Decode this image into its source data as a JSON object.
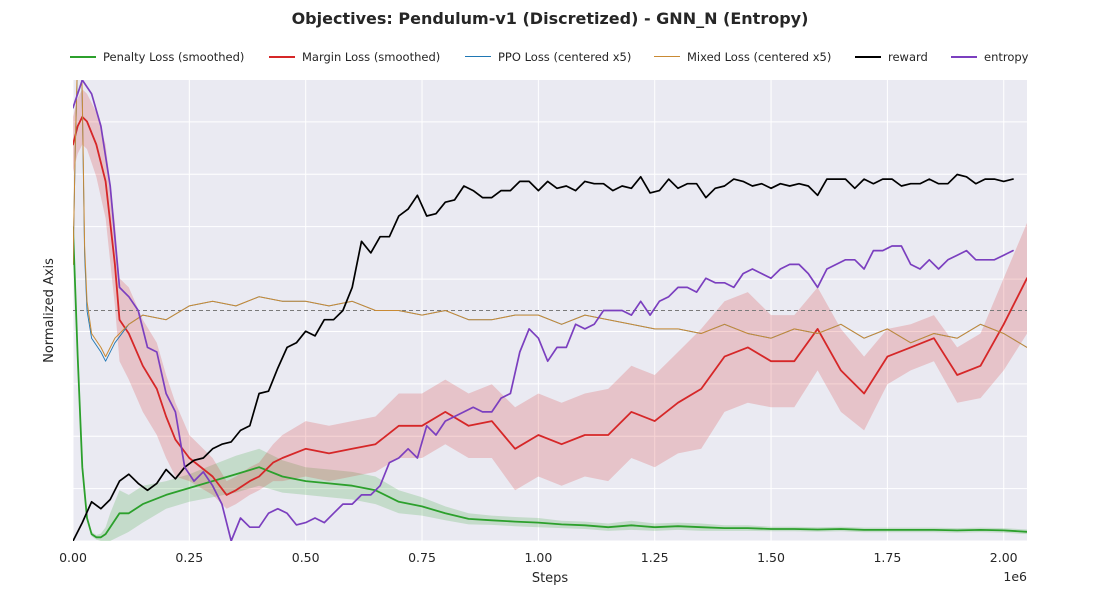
{
  "chart_data": {
    "type": "line",
    "title": "Objectives: Pendulum-v1 (Discretized) - GNN_N (Entropy)",
    "xlabel": "Steps",
    "ylabel": "Normalized Axis",
    "x_scale_label": "1e6",
    "xlim": [
      0.0,
      2.05
    ],
    "ylim": [
      0,
      1
    ],
    "x_ticks": [
      0.0,
      0.25,
      0.5,
      0.75,
      1.0,
      1.25,
      1.5,
      1.75,
      2.0
    ],
    "x_tick_labels": [
      "0.00",
      "0.25",
      "0.50",
      "0.75",
      "1.00",
      "1.25",
      "1.50",
      "1.75",
      "2.00"
    ],
    "grid": true,
    "legend_position": "top",
    "reference_line": {
      "y": 0.5,
      "style": "dashed",
      "color": "#7a7a7a"
    },
    "series": [
      {
        "name": "Penalty Loss (smoothed)",
        "color": "#2ca02c",
        "band_color": "#2ca02c",
        "x": [
          0.0,
          0.01,
          0.02,
          0.03,
          0.04,
          0.05,
          0.06,
          0.07,
          0.08,
          0.1,
          0.12,
          0.15,
          0.2,
          0.25,
          0.3,
          0.35,
          0.4,
          0.45,
          0.5,
          0.55,
          0.6,
          0.65,
          0.7,
          0.75,
          0.8,
          0.85,
          0.9,
          0.95,
          1.0,
          1.05,
          1.1,
          1.15,
          1.2,
          1.25,
          1.3,
          1.35,
          1.4,
          1.45,
          1.5,
          1.55,
          1.6,
          1.65,
          1.7,
          1.75,
          1.8,
          1.85,
          1.9,
          1.95,
          2.0,
          2.05
        ],
        "y": [
          0.68,
          0.4,
          0.16,
          0.05,
          0.015,
          0.008,
          0.008,
          0.015,
          0.03,
          0.06,
          0.06,
          0.08,
          0.1,
          0.115,
          0.13,
          0.145,
          0.16,
          0.14,
          0.13,
          0.125,
          0.12,
          0.11,
          0.085,
          0.075,
          0.06,
          0.048,
          0.045,
          0.042,
          0.04,
          0.036,
          0.034,
          0.03,
          0.034,
          0.03,
          0.032,
          0.03,
          0.028,
          0.028,
          0.026,
          0.026,
          0.025,
          0.026,
          0.024,
          0.024,
          0.024,
          0.024,
          0.023,
          0.024,
          0.023,
          0.02
        ],
        "band": [
          0,
          0,
          0,
          0.005,
          0.005,
          0.005,
          0.008,
          0.015,
          0.03,
          0.05,
          0.04,
          0.04,
          0.03,
          0.03,
          0.035,
          0.04,
          0.04,
          0.035,
          0.03,
          0.03,
          0.03,
          0.03,
          0.025,
          0.02,
          0.015,
          0.012,
          0.01,
          0.01,
          0.01,
          0.008,
          0.008,
          0.008,
          0.01,
          0.008,
          0.008,
          0.008,
          0.006,
          0.006,
          0.005,
          0.005,
          0.005,
          0.005,
          0.005,
          0.005,
          0.005,
          0.005,
          0.005,
          0.005,
          0.005,
          0.005
        ]
      },
      {
        "name": "Margin Loss (smoothed)",
        "color": "#d62728",
        "band_color": "#d62728",
        "x": [
          0.0,
          0.01,
          0.02,
          0.03,
          0.05,
          0.07,
          0.09,
          0.1,
          0.12,
          0.15,
          0.18,
          0.2,
          0.22,
          0.25,
          0.3,
          0.33,
          0.35,
          0.38,
          0.4,
          0.43,
          0.45,
          0.5,
          0.55,
          0.6,
          0.65,
          0.7,
          0.75,
          0.8,
          0.85,
          0.9,
          0.95,
          1.0,
          1.05,
          1.1,
          1.15,
          1.2,
          1.25,
          1.3,
          1.35,
          1.4,
          1.45,
          1.5,
          1.55,
          1.6,
          1.65,
          1.7,
          1.75,
          1.8,
          1.85,
          1.9,
          1.95,
          2.0,
          2.05
        ],
        "y": [
          0.86,
          0.9,
          0.92,
          0.91,
          0.86,
          0.78,
          0.6,
          0.48,
          0.45,
          0.38,
          0.33,
          0.27,
          0.22,
          0.18,
          0.14,
          0.1,
          0.11,
          0.13,
          0.14,
          0.17,
          0.18,
          0.2,
          0.19,
          0.2,
          0.21,
          0.25,
          0.25,
          0.28,
          0.25,
          0.26,
          0.2,
          0.23,
          0.21,
          0.23,
          0.23,
          0.28,
          0.26,
          0.3,
          0.33,
          0.4,
          0.42,
          0.39,
          0.39,
          0.46,
          0.37,
          0.32,
          0.4,
          0.42,
          0.44,
          0.36,
          0.38,
          0.47,
          0.57
        ],
        "band": [
          0.06,
          0.06,
          0.06,
          0.06,
          0.07,
          0.08,
          0.09,
          0.09,
          0.1,
          0.1,
          0.1,
          0.09,
          0.08,
          0.05,
          0.04,
          0.03,
          0.03,
          0.03,
          0.03,
          0.04,
          0.05,
          0.06,
          0.06,
          0.06,
          0.06,
          0.07,
          0.07,
          0.07,
          0.07,
          0.08,
          0.09,
          0.09,
          0.09,
          0.09,
          0.1,
          0.1,
          0.1,
          0.11,
          0.13,
          0.12,
          0.12,
          0.1,
          0.1,
          0.09,
          0.09,
          0.08,
          0.06,
          0.05,
          0.05,
          0.06,
          0.07,
          0.1,
          0.12
        ]
      },
      {
        "name": "PPO Loss (centered x5)",
        "color": "#1f77b4",
        "x": [
          0.0,
          0.005,
          0.01,
          0.015,
          0.02,
          0.025,
          0.03,
          0.04,
          0.06,
          0.07,
          0.09,
          0.12,
          0.15,
          0.2,
          0.25,
          0.3,
          0.35,
          0.4,
          0.45,
          0.5,
          0.55,
          0.6,
          0.65,
          0.7,
          0.75,
          0.8,
          0.85,
          0.9,
          0.95,
          1.0,
          1.05,
          1.1,
          1.15,
          1.2,
          1.25,
          1.3,
          1.35,
          1.4,
          1.45,
          1.5,
          1.55,
          1.6,
          1.65,
          1.7,
          1.75,
          1.8,
          1.85,
          1.9,
          1.95,
          2.0,
          2.05
        ],
        "y": [
          0.6,
          0.85,
          1.05,
          1.2,
          0.95,
          0.62,
          0.5,
          0.44,
          0.41,
          0.39,
          0.43,
          0.47,
          0.49,
          0.48,
          0.51,
          0.52,
          0.51,
          0.53,
          0.52,
          0.52,
          0.51,
          0.52,
          0.5,
          0.5,
          0.49,
          0.5,
          0.48,
          0.48,
          0.49,
          0.49,
          0.47,
          0.49,
          0.48,
          0.47,
          0.46,
          0.46,
          0.45,
          0.47,
          0.45,
          0.44,
          0.46,
          0.45,
          0.47,
          0.44,
          0.46,
          0.43,
          0.45,
          0.44,
          0.47,
          0.45,
          0.42
        ]
      },
      {
        "name": "Mixed Loss (centered x5)",
        "color": "#c98a34",
        "x": [
          0.0,
          0.005,
          0.01,
          0.015,
          0.02,
          0.025,
          0.03,
          0.04,
          0.06,
          0.07,
          0.09,
          0.12,
          0.15,
          0.2,
          0.25,
          0.3,
          0.35,
          0.4,
          0.45,
          0.5,
          0.55,
          0.6,
          0.65,
          0.7,
          0.75,
          0.8,
          0.85,
          0.9,
          0.95,
          1.0,
          1.05,
          1.1,
          1.15,
          1.2,
          1.25,
          1.3,
          1.35,
          1.4,
          1.45,
          1.5,
          1.55,
          1.6,
          1.65,
          1.7,
          1.75,
          1.8,
          1.85,
          1.9,
          1.95,
          2.0,
          2.05
        ],
        "y": [
          0.6,
          0.86,
          1.06,
          1.2,
          0.96,
          0.64,
          0.52,
          0.45,
          0.42,
          0.4,
          0.44,
          0.47,
          0.49,
          0.48,
          0.51,
          0.52,
          0.51,
          0.53,
          0.52,
          0.52,
          0.51,
          0.52,
          0.5,
          0.5,
          0.49,
          0.5,
          0.48,
          0.48,
          0.49,
          0.49,
          0.47,
          0.49,
          0.48,
          0.47,
          0.46,
          0.46,
          0.45,
          0.47,
          0.45,
          0.44,
          0.46,
          0.45,
          0.47,
          0.44,
          0.46,
          0.43,
          0.45,
          0.44,
          0.47,
          0.45,
          0.42
        ]
      },
      {
        "name": "reward",
        "color": "#000000",
        "x": [
          0.0,
          0.02,
          0.04,
          0.06,
          0.08,
          0.1,
          0.12,
          0.14,
          0.16,
          0.18,
          0.2,
          0.22,
          0.24,
          0.26,
          0.28,
          0.3,
          0.32,
          0.34,
          0.36,
          0.38,
          0.4,
          0.42,
          0.44,
          0.46,
          0.48,
          0.5,
          0.52,
          0.54,
          0.56,
          0.58,
          0.6,
          0.62,
          0.64,
          0.66,
          0.68,
          0.7,
          0.72,
          0.74,
          0.76,
          0.78,
          0.8,
          0.82,
          0.84,
          0.86,
          0.88,
          0.9,
          0.92,
          0.94,
          0.96,
          0.98,
          1.0,
          1.02,
          1.04,
          1.06,
          1.08,
          1.1,
          1.12,
          1.14,
          1.16,
          1.18,
          1.2,
          1.22,
          1.24,
          1.26,
          1.28,
          1.3,
          1.32,
          1.34,
          1.36,
          1.38,
          1.4,
          1.42,
          1.44,
          1.46,
          1.48,
          1.5,
          1.52,
          1.54,
          1.56,
          1.58,
          1.6,
          1.62,
          1.64,
          1.66,
          1.68,
          1.7,
          1.72,
          1.74,
          1.76,
          1.78,
          1.8,
          1.82,
          1.84,
          1.86,
          1.88,
          1.9,
          1.92,
          1.94,
          1.96,
          1.98,
          2.0,
          2.02
        ],
        "y": [
          0.0,
          0.04,
          0.085,
          0.07,
          0.09,
          0.13,
          0.145,
          0.125,
          0.11,
          0.125,
          0.155,
          0.135,
          0.16,
          0.175,
          0.18,
          0.2,
          0.21,
          0.215,
          0.24,
          0.25,
          0.32,
          0.325,
          0.375,
          0.42,
          0.43,
          0.455,
          0.445,
          0.48,
          0.48,
          0.5,
          0.55,
          0.65,
          0.625,
          0.66,
          0.66,
          0.705,
          0.72,
          0.75,
          0.705,
          0.71,
          0.735,
          0.74,
          0.77,
          0.76,
          0.745,
          0.745,
          0.76,
          0.76,
          0.78,
          0.78,
          0.76,
          0.78,
          0.765,
          0.77,
          0.76,
          0.78,
          0.775,
          0.775,
          0.76,
          0.77,
          0.765,
          0.79,
          0.755,
          0.76,
          0.785,
          0.765,
          0.775,
          0.775,
          0.745,
          0.765,
          0.77,
          0.785,
          0.78,
          0.77,
          0.775,
          0.765,
          0.775,
          0.77,
          0.775,
          0.77,
          0.75,
          0.785,
          0.785,
          0.785,
          0.765,
          0.785,
          0.775,
          0.785,
          0.785,
          0.77,
          0.775,
          0.775,
          0.785,
          0.775,
          0.775,
          0.795,
          0.79,
          0.775,
          0.785,
          0.785,
          0.78,
          0.785
        ]
      },
      {
        "name": "entropy",
        "color": "#7b3fbf",
        "x": [
          0.0,
          0.02,
          0.04,
          0.06,
          0.08,
          0.1,
          0.12,
          0.14,
          0.16,
          0.18,
          0.2,
          0.22,
          0.24,
          0.26,
          0.28,
          0.3,
          0.32,
          0.34,
          0.36,
          0.38,
          0.4,
          0.42,
          0.44,
          0.46,
          0.48,
          0.5,
          0.52,
          0.54,
          0.56,
          0.58,
          0.6,
          0.62,
          0.64,
          0.66,
          0.68,
          0.7,
          0.72,
          0.74,
          0.76,
          0.78,
          0.8,
          0.82,
          0.84,
          0.86,
          0.88,
          0.9,
          0.92,
          0.94,
          0.96,
          0.98,
          1.0,
          1.02,
          1.04,
          1.06,
          1.08,
          1.1,
          1.12,
          1.14,
          1.16,
          1.18,
          1.2,
          1.22,
          1.24,
          1.26,
          1.28,
          1.3,
          1.32,
          1.34,
          1.36,
          1.38,
          1.4,
          1.42,
          1.44,
          1.46,
          1.48,
          1.5,
          1.52,
          1.54,
          1.56,
          1.58,
          1.6,
          1.62,
          1.64,
          1.66,
          1.68,
          1.7,
          1.72,
          1.74,
          1.76,
          1.78,
          1.8,
          1.82,
          1.84,
          1.86,
          1.88,
          1.9,
          1.92,
          1.94,
          1.96,
          1.98,
          2.0,
          2.02
        ],
        "y": [
          0.94,
          1.0,
          0.97,
          0.9,
          0.77,
          0.55,
          0.53,
          0.5,
          0.42,
          0.41,
          0.32,
          0.28,
          0.16,
          0.13,
          0.15,
          0.12,
          0.08,
          0.0,
          0.05,
          0.03,
          0.03,
          0.06,
          0.07,
          0.06,
          0.035,
          0.04,
          0.05,
          0.04,
          0.06,
          0.08,
          0.08,
          0.1,
          0.1,
          0.12,
          0.17,
          0.18,
          0.2,
          0.18,
          0.25,
          0.23,
          0.26,
          0.27,
          0.28,
          0.29,
          0.28,
          0.28,
          0.31,
          0.32,
          0.41,
          0.46,
          0.44,
          0.39,
          0.42,
          0.42,
          0.47,
          0.46,
          0.47,
          0.5,
          0.5,
          0.5,
          0.49,
          0.52,
          0.49,
          0.52,
          0.53,
          0.55,
          0.55,
          0.54,
          0.57,
          0.56,
          0.56,
          0.55,
          0.58,
          0.59,
          0.58,
          0.57,
          0.59,
          0.6,
          0.6,
          0.58,
          0.55,
          0.59,
          0.6,
          0.61,
          0.61,
          0.59,
          0.63,
          0.63,
          0.64,
          0.64,
          0.6,
          0.59,
          0.61,
          0.59,
          0.61,
          0.62,
          0.63,
          0.61,
          0.61,
          0.61,
          0.62,
          0.63
        ]
      }
    ]
  }
}
